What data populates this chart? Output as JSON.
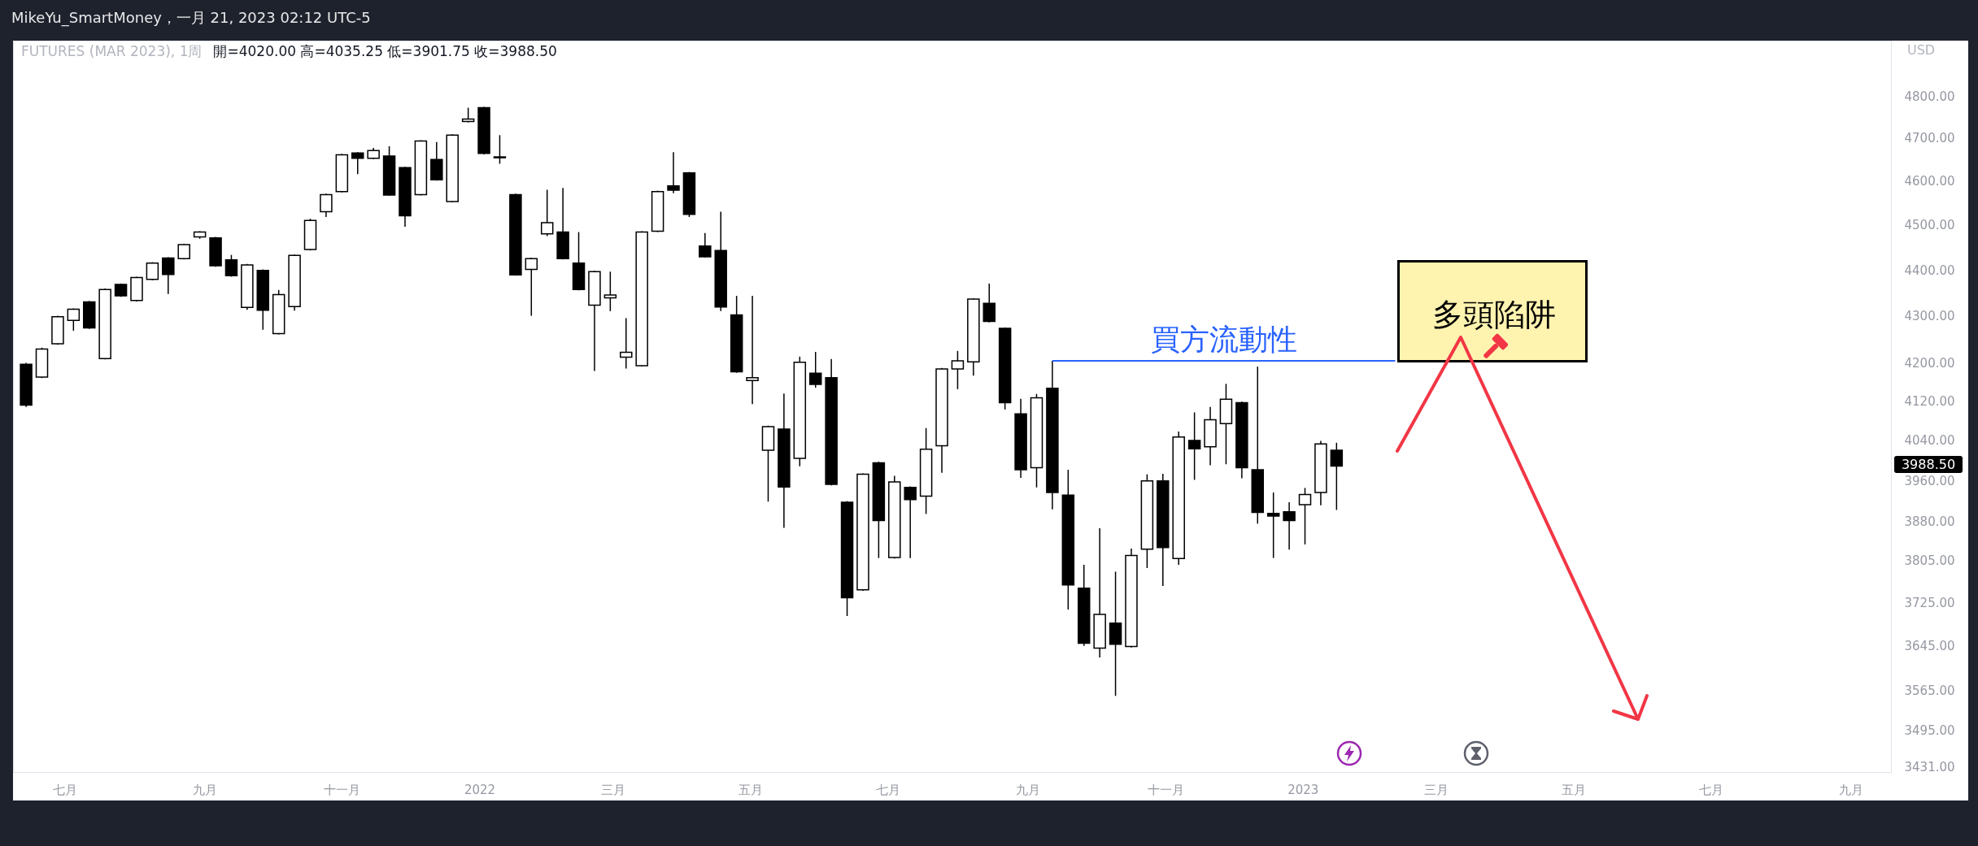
{
  "chart_data": {
    "type": "candlestick",
    "title": "FUTURES (MAR 2023), 1周",
    "subtitle": "開=4020.00 高=4035.25 低=3901.75 收=3988.50",
    "ylabel": "USD",
    "annotations": [
      "MikeYu_SmartMoney，一月 21, 2023 02:12 UTC-5",
      "多頭陷阱",
      "3988.50"
    ],
    "x": [
      "2021-06-14",
      "2021-06-21",
      "2021-06-28",
      "2021-07-05",
      "2021-07-12",
      "2021-07-19",
      "2021-07-26",
      "2021-08-02",
      "2021-08-09",
      "2021-08-16",
      "2021-08-23",
      "2021-08-30",
      "2021-09-06",
      "2021-09-13",
      "2021-09-20",
      "2021-09-27",
      "2021-10-04",
      "2021-10-11",
      "2021-10-18",
      "2021-10-25",
      "2021-11-01",
      "2021-11-08",
      "2021-11-15",
      "2021-11-22",
      "2021-11-29",
      "2021-12-06",
      "2021-12-13",
      "2021-12-20",
      "2021-12-27",
      "2022-01-03",
      "2022-01-10",
      "2022-01-17",
      "2022-01-24",
      "2022-01-31",
      "2022-02-07",
      "2022-02-14",
      "2022-02-21",
      "2022-02-28",
      "2022-03-07",
      "2022-03-14",
      "2022-03-21",
      "2022-03-28",
      "2022-04-04",
      "2022-04-11",
      "2022-04-18",
      "2022-04-25",
      "2022-05-02",
      "2022-05-09",
      "2022-05-16",
      "2022-05-23",
      "2022-05-30",
      "2022-06-06",
      "2022-06-13",
      "2022-06-20",
      "2022-06-27",
      "2022-07-04",
      "2022-07-11",
      "2022-07-18",
      "2022-07-25",
      "2022-08-01",
      "2022-08-08",
      "2022-08-15",
      "2022-08-22",
      "2022-08-29",
      "2022-09-05",
      "2022-09-12",
      "2022-09-19",
      "2022-09-26",
      "2022-10-03",
      "2022-10-10",
      "2022-10-17",
      "2022-10-24",
      "2022-10-31",
      "2022-11-07",
      "2022-11-14",
      "2022-11-21",
      "2022-11-28",
      "2022-12-05",
      "2022-12-12",
      "2022-12-19",
      "2022-12-26",
      "2023-01-02",
      "2023-01-09",
      "2023-01-16"
    ],
    "ohlc": [
      [
        4197,
        4200,
        4108,
        4112
      ],
      [
        4170,
        4232,
        4168,
        4229
      ],
      [
        4240,
        4300,
        4238,
        4298
      ],
      [
        4290,
        4316,
        4268,
        4314
      ],
      [
        4330,
        4332,
        4272,
        4274
      ],
      [
        4209,
        4359,
        4207,
        4357
      ],
      [
        4368,
        4370,
        4341,
        4343
      ],
      [
        4333,
        4385,
        4331,
        4383
      ],
      [
        4379,
        4417,
        4377,
        4415
      ],
      [
        4426,
        4428,
        4347,
        4390
      ],
      [
        4425,
        4458,
        4423,
        4456
      ],
      [
        4473,
        4486,
        4469,
        4484
      ],
      [
        4471,
        4473,
        4407,
        4409
      ],
      [
        4422,
        4433,
        4385,
        4387
      ],
      [
        4318,
        4413,
        4313,
        4411
      ],
      [
        4399,
        4401,
        4270,
        4312
      ],
      [
        4262,
        4356,
        4260,
        4346
      ],
      [
        4320,
        4434,
        4311,
        4432
      ],
      [
        4445,
        4514,
        4443,
        4510
      ],
      [
        4530,
        4571,
        4518,
        4569
      ],
      [
        4576,
        4663,
        4574,
        4661
      ],
      [
        4665,
        4667,
        4616,
        4653
      ],
      [
        4653,
        4677,
        4651,
        4671
      ],
      [
        4658,
        4681,
        4566,
        4568
      ],
      [
        4631,
        4633,
        4496,
        4521
      ],
      [
        4569,
        4695,
        4567,
        4693
      ],
      [
        4650,
        4691,
        4601,
        4603
      ],
      [
        4553,
        4709,
        4551,
        4707
      ],
      [
        4739,
        4772,
        4737,
        4745
      ],
      [
        4772,
        4774,
        4662,
        4664
      ],
      [
        4656,
        4707,
        4640,
        4654
      ],
      [
        4569,
        4571,
        4387,
        4389
      ],
      [
        4401,
        4427,
        4300,
        4425
      ],
      [
        4480,
        4580,
        4475,
        4505
      ],
      [
        4484,
        4584,
        4423,
        4425
      ],
      [
        4415,
        4484,
        4355,
        4357
      ],
      [
        4323,
        4398,
        4183,
        4396
      ],
      [
        4339,
        4396,
        4310,
        4345
      ],
      [
        4212,
        4295,
        4188,
        4222
      ],
      [
        4194,
        4486,
        4192,
        4484
      ],
      [
        4486,
        4578,
        4484,
        4576
      ],
      [
        4589,
        4667,
        4572,
        4579
      ],
      [
        4619,
        4621,
        4518,
        4524
      ],
      [
        4453,
        4482,
        4427,
        4429
      ],
      [
        4443,
        4530,
        4310,
        4319
      ],
      [
        4302,
        4343,
        4179,
        4181
      ],
      [
        4163,
        4343,
        4114,
        4169
      ],
      [
        4020,
        4070,
        3918,
        4068
      ],
      [
        4063,
        4136,
        3867,
        3947
      ],
      [
        4004,
        4213,
        3988,
        4201
      ],
      [
        4178,
        4223,
        4148,
        4155
      ],
      [
        4169,
        4208,
        3950,
        3952
      ],
      [
        3917,
        3919,
        3700,
        3734
      ],
      [
        3749,
        3974,
        3747,
        3972
      ],
      [
        3995,
        3997,
        3809,
        3881
      ],
      [
        3810,
        3969,
        3808,
        3957
      ],
      [
        3946,
        3948,
        3809,
        3922
      ],
      [
        3929,
        4065,
        3894,
        4022
      ],
      [
        4029,
        4189,
        3975,
        4187
      ],
      [
        4187,
        4225,
        4145,
        4204
      ],
      [
        4202,
        4338,
        4173,
        4336
      ],
      [
        4327,
        4370,
        4286,
        4288
      ],
      [
        4273,
        4275,
        4103,
        4117
      ],
      [
        4094,
        4125,
        3965,
        3981
      ],
      [
        3985,
        4135,
        3946,
        4127
      ],
      [
        4147,
        4204,
        3903,
        3936
      ],
      [
        3931,
        3981,
        3712,
        3758
      ],
      [
        3752,
        3796,
        3645,
        3650
      ],
      [
        3641,
        3866,
        3624,
        3703
      ],
      [
        3687,
        3783,
        3555,
        3648
      ],
      [
        3644,
        3827,
        3642,
        3814
      ],
      [
        3826,
        3972,
        3790,
        3959
      ],
      [
        3959,
        3973,
        3756,
        3829
      ],
      [
        3808,
        4058,
        3796,
        4047
      ],
      [
        4040,
        4097,
        3961,
        4023
      ],
      [
        4027,
        4108,
        3990,
        4082
      ],
      [
        4074,
        4156,
        3992,
        4124
      ],
      [
        4117,
        4119,
        3964,
        3985
      ],
      [
        3981,
        4192,
        3875,
        3897
      ],
      [
        3895,
        3936,
        3809,
        3890
      ],
      [
        3898,
        3917,
        3825,
        3881
      ],
      [
        3912,
        3945,
        3835,
        3932
      ],
      [
        3936,
        4039,
        3911,
        4033
      ],
      [
        4020,
        4035.25,
        3901.75,
        3988.5
      ]
    ],
    "series": [
      {
        "type": "line",
        "name": "買方流動性",
        "color": "#2962ff",
        "x": [
          "2022-09-12",
          "2023-02-11"
        ],
        "values": [
          4204,
          4204
        ]
      }
    ],
    "xlim": [
      "2021-06-10",
      "2023-09-17"
    ],
    "xticks": [
      {
        "value": "2021-07-01",
        "label": "七月"
      },
      {
        "value": "2021-09-01",
        "label": "九月"
      },
      {
        "value": "2021-11-01",
        "label": "十一月"
      },
      {
        "value": "2022-01-01",
        "label": "2022"
      },
      {
        "value": "2022-03-01",
        "label": "三月"
      },
      {
        "value": "2022-05-01",
        "label": "五月"
      },
      {
        "value": "2022-07-01",
        "label": "七月"
      },
      {
        "value": "2022-09-01",
        "label": "九月"
      },
      {
        "value": "2022-11-01",
        "label": "十一月"
      },
      {
        "value": "2023-01-01",
        "label": "2023"
      },
      {
        "value": "2023-03-01",
        "label": "三月"
      },
      {
        "value": "2023-05-01",
        "label": "五月"
      },
      {
        "value": "2023-07-01",
        "label": "七月"
      },
      {
        "value": "2023-09-01",
        "label": "九月"
      }
    ],
    "ylim": [
      3422,
      4935
    ],
    "log": true,
    "yticks": [
      {
        "value": 3431,
        "label": "3431.00"
      },
      {
        "value": 3495,
        "label": "3495.00"
      },
      {
        "value": 3565,
        "label": "3565.00"
      },
      {
        "value": 3645,
        "label": "3645.00"
      },
      {
        "value": 3725,
        "label": "3725.00"
      },
      {
        "value": 3805,
        "label": "3805.00"
      },
      {
        "value": 3880,
        "label": "3880.00"
      },
      {
        "value": 3960,
        "label": "3960.00"
      },
      {
        "value": 4040,
        "label": "4040.00"
      },
      {
        "value": 4120,
        "label": "4120.00"
      },
      {
        "value": 4200,
        "label": "4200.00"
      },
      {
        "value": 4300,
        "label": "4300.00"
      },
      {
        "value": 4400,
        "label": "4400.00"
      },
      {
        "value": 4500,
        "label": "4500.00"
      },
      {
        "value": 4600,
        "label": "4600.00"
      },
      {
        "value": 4700,
        "label": "4700.00"
      },
      {
        "value": 4800,
        "label": "4800.00"
      }
    ]
  }
}
